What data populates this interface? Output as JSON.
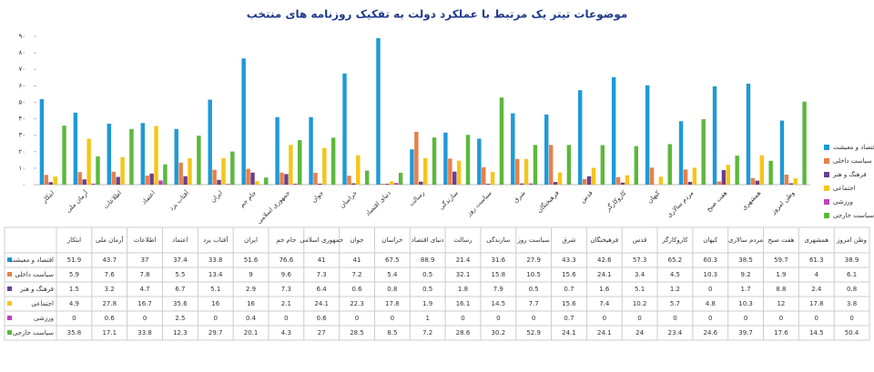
{
  "chart_data": {
    "type": "bar",
    "title": "موضوعات تیتر یک مرتبط با عملکرد دولت به تفکیک روزنامه های منتخب",
    "categories": [
      "ابتکار",
      "آرمان ملی",
      "اطلاعات",
      "اعتماد",
      "آفتاب یزد",
      "ایران",
      "جام جم",
      "جمهوری اسلامی",
      "جوان",
      "خراسان",
      "دنیای اقتصاد",
      "رسالت",
      "سازندگی",
      "سیاست روز",
      "شرق",
      "فرهیختگان",
      "قدس",
      "کاروکارگر",
      "کیهان",
      "مردم سالاری",
      "هفت صبح",
      "همشهری",
      "وطن امروز"
    ],
    "series": [
      {
        "name": "اقتصاد و معیشت",
        "color": "#1e9ad6",
        "values": [
          51.9,
          43.7,
          37,
          37.4,
          33.8,
          51.6,
          76.6,
          41,
          41,
          67.5,
          88.9,
          21.4,
          31.6,
          27.9,
          43.3,
          42.6,
          57.3,
          65.2,
          60.3,
          38.5,
          59.7,
          61.3,
          38.9
        ]
      },
      {
        "name": "سیاست داخلی",
        "color": "#e8804a",
        "values": [
          5.9,
          7.6,
          7.8,
          5.5,
          13.4,
          9,
          9.6,
          7.3,
          7.2,
          5.4,
          0.5,
          32.1,
          15.8,
          10.5,
          15.6,
          24.1,
          3.4,
          4.5,
          10.3,
          9.2,
          1.9,
          4,
          6.1
        ]
      },
      {
        "name": "فرهنگ و هنر",
        "color": "#6a3f8f",
        "values": [
          1.5,
          3.2,
          4.7,
          6.7,
          5.1,
          2.9,
          7.3,
          6.4,
          0.6,
          0.8,
          0.5,
          1.8,
          7.9,
          0.5,
          0.7,
          1.6,
          5.1,
          1.2,
          0,
          1.7,
          8.8,
          2.4,
          0.8
        ]
      },
      {
        "name": "اجتماعی",
        "color": "#f5c518",
        "values": [
          4.9,
          27.8,
          16.7,
          35.6,
          16,
          16,
          2.1,
          24.1,
          22.3,
          17.8,
          1.9,
          16.1,
          14.5,
          7.7,
          15.6,
          7.4,
          10.2,
          5.7,
          4.8,
          10.3,
          12,
          17.8,
          3.8
        ]
      },
      {
        "name": "ورزشی",
        "color": "#c040c0",
        "values": [
          0,
          0.6,
          0,
          2.5,
          0,
          0.4,
          0,
          0.6,
          0,
          0,
          1,
          0,
          0,
          0,
          0.7,
          0,
          0,
          0,
          0,
          0,
          0,
          0,
          0
        ]
      },
      {
        "name": "سیاست خارجی",
        "color": "#5cb83c",
        "values": [
          35.8,
          17.1,
          33.8,
          12.3,
          29.7,
          20.1,
          4.3,
          27,
          28.5,
          8.5,
          7.2,
          28.6,
          30.2,
          52.9,
          24.1,
          24.1,
          24,
          23.4,
          24.6,
          39.7,
          17.6,
          14.5,
          50.4
        ]
      }
    ],
    "ylim": [
      0,
      90
    ],
    "yticks": [
      {
        "value": 0,
        "label": "۰"
      },
      {
        "value": 10,
        "label": "۱۰"
      },
      {
        "value": 20,
        "label": "۲۰"
      },
      {
        "value": 30,
        "label": "۳۰"
      },
      {
        "value": 40,
        "label": "۴۰"
      },
      {
        "value": 50,
        "label": "۵۰"
      },
      {
        "value": 60,
        "label": "۶۰"
      },
      {
        "value": 70,
        "label": "۷۰"
      },
      {
        "value": 80,
        "label": "۸۰"
      },
      {
        "value": 90,
        "label": "۹۰"
      }
    ],
    "grid": false
  }
}
